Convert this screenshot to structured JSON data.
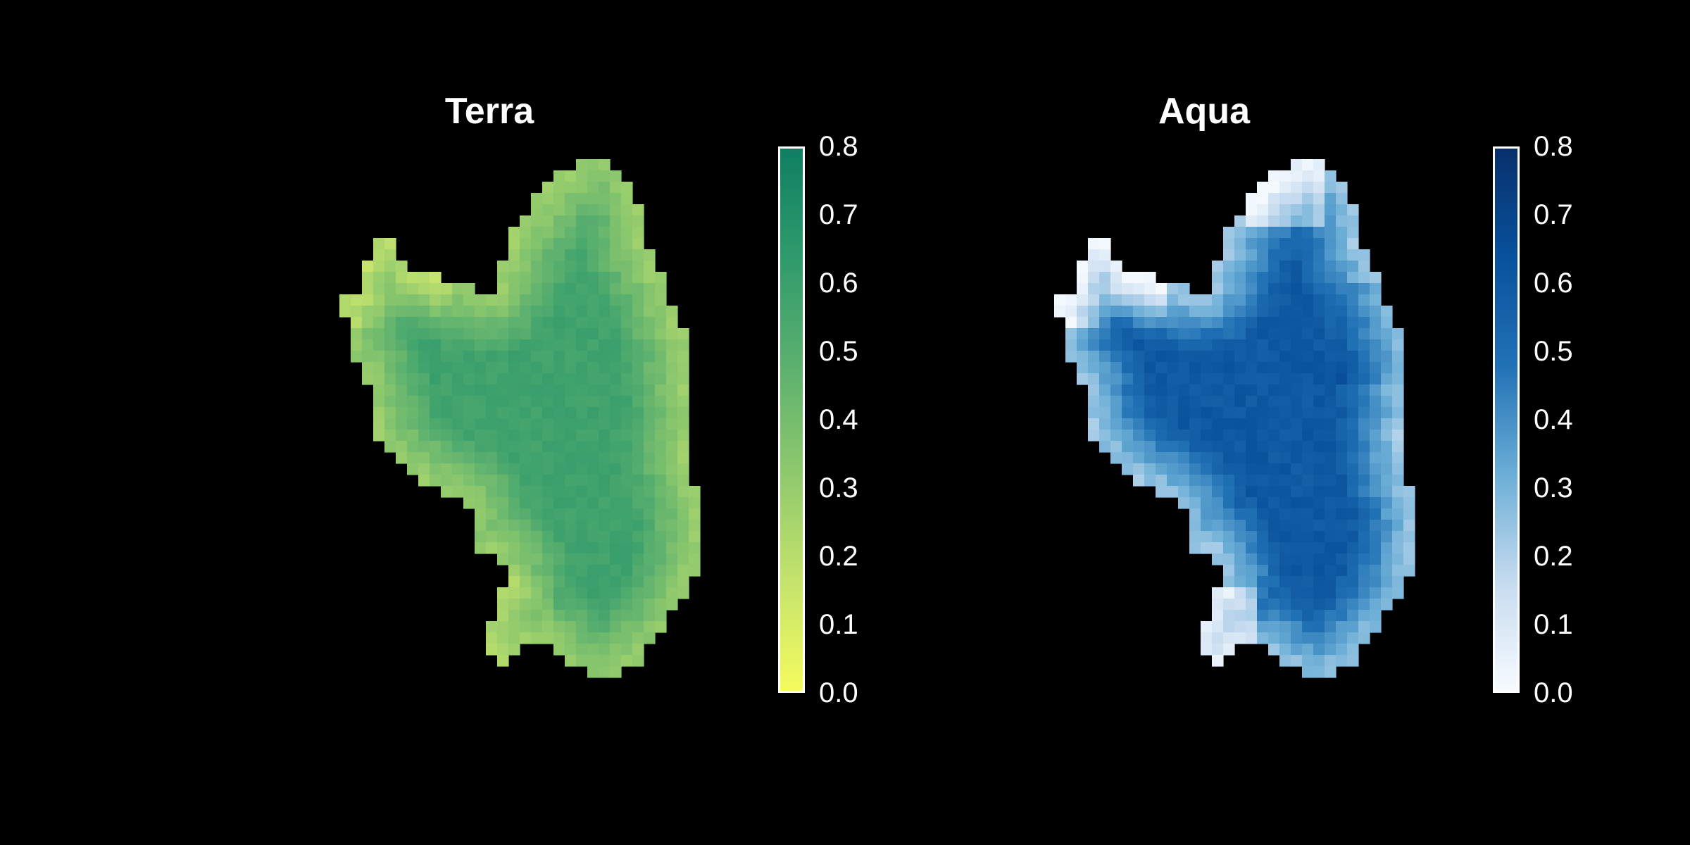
{
  "chart_data": [
    {
      "type": "heatmap",
      "title": "Terra",
      "colorbar": {
        "min": 0.0,
        "max": 0.8,
        "ticks": [
          "0.0",
          "0.1",
          "0.2",
          "0.3",
          "0.4",
          "0.5",
          "0.6",
          "0.7",
          "0.8"
        ],
        "colors": [
          "#f4fb5e",
          "#c5e36c",
          "#8fc96d",
          "#5bb06e",
          "#2f9a6c",
          "#0e7f61"
        ]
      },
      "typical_value_range": [
        0.45,
        0.65
      ]
    },
    {
      "type": "heatmap",
      "title": "Aqua",
      "colorbar": {
        "min": 0.0,
        "max": 0.8,
        "ticks": [
          "0.0",
          "0.1",
          "0.2",
          "0.3",
          "0.4",
          "0.5",
          "0.6",
          "0.7",
          "0.8"
        ],
        "colors": [
          "#f7fbff",
          "#c6dbef",
          "#6baed6",
          "#2171b5",
          "#08519c",
          "#08306b"
        ]
      },
      "typical_value_range": [
        0.45,
        0.7
      ]
    }
  ]
}
